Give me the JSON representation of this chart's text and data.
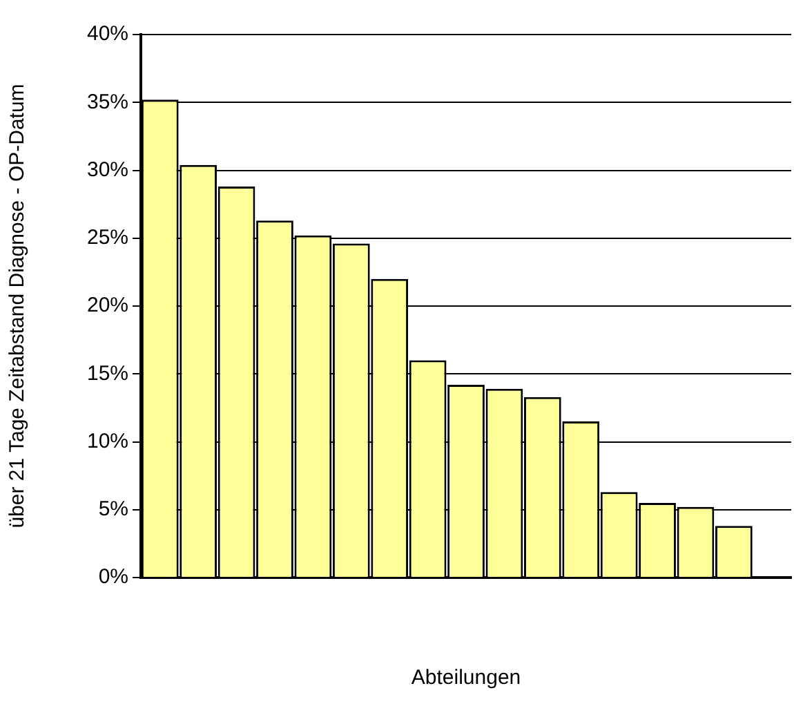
{
  "chart_data": {
    "type": "bar",
    "xlabel": "Abteilungen",
    "ylabel": "über 21 Tage Zeitabstand Diagnose - OP-Datum",
    "categories": [
      null,
      null,
      null,
      null,
      null,
      null,
      null,
      null,
      null,
      null,
      null,
      null,
      null,
      null,
      null,
      null,
      null
    ],
    "values": [
      35.2,
      30.4,
      28.8,
      26.3,
      25.2,
      24.6,
      22.0,
      16.0,
      14.2,
      13.9,
      13.3,
      11.5,
      6.3,
      5.5,
      5.2,
      3.8,
      null
    ],
    "color": "#ffff99",
    "ylim": [
      0,
      40
    ],
    "yticks": [
      {
        "value": 0,
        "label": "0%"
      },
      {
        "value": 5,
        "label": "5%"
      },
      {
        "value": 10,
        "label": "10%"
      },
      {
        "value": 15,
        "label": "15%"
      },
      {
        "value": 20,
        "label": "20%"
      },
      {
        "value": 25,
        "label": "25%"
      },
      {
        "value": 30,
        "label": "30%"
      },
      {
        "value": 35,
        "label": "35%"
      },
      {
        "value": 40,
        "label": "40%"
      }
    ],
    "grid": "y",
    "legend": false
  }
}
